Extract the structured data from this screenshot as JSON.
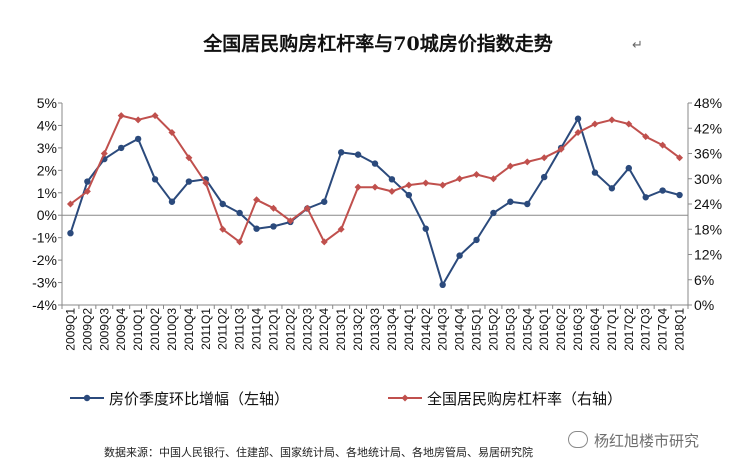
{
  "chart_data": {
    "type": "line",
    "title": "全国居民购房杠杆率与70城房价指数走势",
    "title_mark": "↵",
    "categories": [
      "2009Q1",
      "2009Q2",
      "2009Q3",
      "2009Q4",
      "2010Q1",
      "2010Q2",
      "2010Q3",
      "2010Q4",
      "2011Q1",
      "2011Q2",
      "2011Q3",
      "2011Q4",
      "2012Q1",
      "2012Q2",
      "2012Q3",
      "2012Q4",
      "2013Q1",
      "2013Q2",
      "2013Q3",
      "2013Q4",
      "2014Q1",
      "2014Q2",
      "2014Q3",
      "2014Q4",
      "2015Q1",
      "2015Q2",
      "2015Q3",
      "2015Q4",
      "2016Q1",
      "2016Q2",
      "2016Q3",
      "2016Q4",
      "2017Q1",
      "2017Q2",
      "2017Q3",
      "2017Q4",
      "2018Q1"
    ],
    "series": [
      {
        "name": "房价季度环比增幅（左轴）",
        "axis": "left",
        "color": "#2b4a7c",
        "values": [
          -0.8,
          1.5,
          2.5,
          3.0,
          3.4,
          1.6,
          0.6,
          1.5,
          1.6,
          0.5,
          0.1,
          -0.6,
          -0.5,
          -0.3,
          0.3,
          0.6,
          2.8,
          2.7,
          2.3,
          1.6,
          0.9,
          -0.6,
          -3.1,
          -1.8,
          -1.1,
          0.1,
          0.6,
          0.5,
          1.7,
          3.0,
          4.3,
          1.9,
          1.2,
          2.1,
          0.8,
          1.1,
          0.9
        ]
      },
      {
        "name": "全国居民购房杠杆率（右轴）",
        "axis": "right",
        "color": "#c0504d",
        "values": [
          24,
          27,
          36,
          45,
          44,
          45,
          41,
          35,
          29,
          18,
          15,
          25,
          23,
          20,
          23,
          15,
          18,
          28,
          28,
          27,
          28.5,
          29,
          28.5,
          30,
          31,
          30,
          33,
          34,
          35,
          37,
          41,
          43,
          44,
          43,
          40,
          38,
          35
        ]
      }
    ],
    "y_left": {
      "min": -4,
      "max": 5,
      "step": 1,
      "tick_labels": [
        "-4%",
        "-3%",
        "-2%",
        "-1%",
        "0%",
        "1%",
        "2%",
        "3%",
        "4%",
        "5%"
      ]
    },
    "y_right": {
      "min": 0,
      "max": 48,
      "step": 6,
      "tick_labels": [
        "0%",
        "6%",
        "12%",
        "18%",
        "24%",
        "30%",
        "36%",
        "42%",
        "48%"
      ]
    },
    "grid": false,
    "legend_position": "bottom"
  },
  "footer": {
    "source": "数据来源：中国人民银行、住建部、国家统计局、各地统计局、各地房管局、易居研究院",
    "watermark": "杨红旭楼市研究"
  }
}
